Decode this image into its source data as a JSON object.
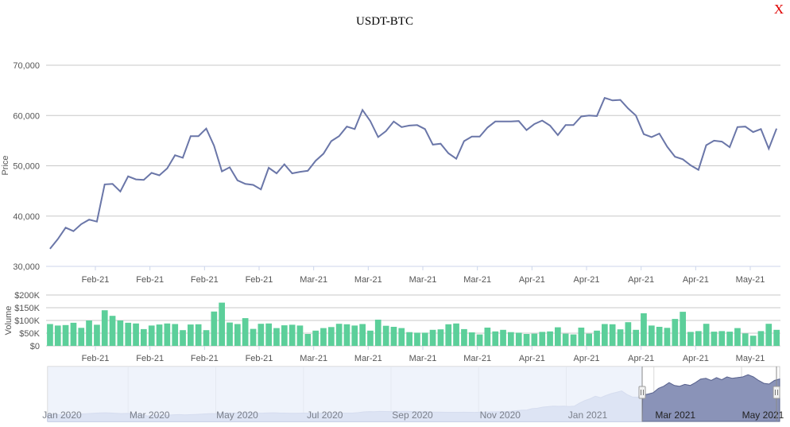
{
  "window": {
    "title": "USDT-BTC",
    "close_label": "X"
  },
  "colors": {
    "price_line": "#6a76a8",
    "volume_bar": "#5ccf9a",
    "navigator_fill": "#b8c3e2",
    "navigator_selected": "#8a93b8",
    "navigator_mask": "#e9eff9"
  },
  "chart_data": [
    {
      "type": "line",
      "title": "USDT-BTC",
      "ylabel": "Price",
      "ylim": [
        30000,
        70000
      ],
      "yticks": [
        30000,
        40000,
        50000,
        60000,
        70000
      ],
      "ytick_labels": [
        "30,000",
        "40,000",
        "50,000",
        "60,000",
        "70,000"
      ],
      "xtick_labels": [
        "Feb-21",
        "Feb-21",
        "Feb-21",
        "Feb-21",
        "Mar-21",
        "Mar-21",
        "Mar-21",
        "Mar-21",
        "Apr-21",
        "Apr-21",
        "Apr-21",
        "Apr-21",
        "May-21"
      ],
      "grid": true,
      "series": [
        {
          "values": [
            33500,
            35400,
            37700,
            37000,
            38400,
            39300,
            38900,
            46300,
            46400,
            44900,
            47900,
            47300,
            47200,
            48600,
            48100,
            49500,
            52100,
            51600,
            55900,
            55900,
            57400,
            54000,
            48900,
            49700,
            47100,
            46400,
            46200,
            45300,
            49600,
            48500,
            50300,
            48500,
            48800,
            49000,
            51000,
            52400,
            54900,
            55900,
            57800,
            57300,
            61100,
            58900,
            55700,
            56900,
            58800,
            57700,
            58000,
            58100,
            57300,
            54200,
            54400,
            52500,
            51400,
            54900,
            55800,
            55800,
            57600,
            58800,
            58800,
            58800,
            58900,
            57100,
            58300,
            59000,
            58000,
            56100,
            58100,
            58100,
            59800,
            60000,
            59900,
            63500,
            63000,
            63100,
            61400,
            60000,
            56300,
            55700,
            56400,
            53800,
            51800,
            51300,
            50100,
            49200,
            54100,
            55000,
            54800,
            53700,
            57700,
            57800,
            56700,
            57300,
            53400,
            57400
          ]
        }
      ]
    },
    {
      "type": "bar",
      "ylabel": "Volume",
      "ylim": [
        0,
        200000
      ],
      "yticks": [
        0,
        50000,
        100000,
        150000,
        200000
      ],
      "ytick_labels": [
        "$0",
        "$50K",
        "$100K",
        "$150K",
        "$200K"
      ],
      "xtick_labels": [
        "Feb-21",
        "Feb-21",
        "Feb-21",
        "Feb-21",
        "Mar-21",
        "Mar-21",
        "Mar-21",
        "Mar-21",
        "Apr-21",
        "Apr-21",
        "Apr-21",
        "Apr-21",
        "May-21"
      ],
      "grid": true,
      "series": [
        {
          "values": [
            86000,
            80000,
            82000,
            91000,
            71000,
            100000,
            83000,
            140000,
            118000,
            100000,
            91000,
            88000,
            66000,
            80000,
            84000,
            88000,
            86000,
            62000,
            84000,
            85000,
            62000,
            135000,
            170000,
            92000,
            86000,
            109000,
            67000,
            87000,
            88000,
            70000,
            81000,
            83000,
            80000,
            47000,
            60000,
            70000,
            74000,
            87000,
            85000,
            80000,
            86000,
            60000,
            103000,
            79000,
            75000,
            70000,
            54000,
            52000,
            52000,
            63000,
            65000,
            85000,
            88000,
            66000,
            53000,
            45000,
            72000,
            57000,
            63000,
            54000,
            52000,
            47000,
            48000,
            55000,
            57000,
            73000,
            48000,
            45000,
            72000,
            48000,
            60000,
            86000,
            85000,
            65000,
            93000,
            63000,
            128000,
            80000,
            75000,
            71000,
            106000,
            134000,
            55000,
            58000,
            87000,
            56000,
            58000,
            56000,
            70000,
            49000,
            40000,
            58000,
            87000,
            63000
          ]
        }
      ]
    },
    {
      "type": "area",
      "role": "navigator",
      "xtick_labels": [
        "Jan 2020",
        "Mar 2020",
        "May 2020",
        "Jul 2020",
        "Sep 2020",
        "Nov 2020",
        "Jan 2021",
        "Mar 2021",
        "May 2021"
      ],
      "selected_range": [
        "Jan-21",
        "May-21"
      ],
      "series": [
        {
          "values": [
            7400,
            7600,
            7200,
            7100,
            7300,
            7800,
            8100,
            8500,
            8900,
            9300,
            9700,
            9900,
            9600,
            9200,
            8800,
            9000,
            8600,
            7900,
            7200,
            5200,
            6100,
            6800,
            6600,
            6700,
            7100,
            7300,
            6900,
            7200,
            7600,
            7900,
            8300,
            8800,
            8700,
            9200,
            9600,
            9500,
            9400,
            9700,
            9800,
            9600,
            9300,
            9500,
            9800,
            9900,
            9600,
            9400,
            9200,
            9100,
            9300,
            9400,
            9200,
            9150,
            9100,
            9000,
            9200,
            9300,
            9400,
            9500,
            9600,
            10100,
            11100,
            11500,
            11400,
            11800,
            11700,
            11600,
            11500,
            11800,
            12000,
            11700,
            11300,
            11400,
            11500,
            10900,
            10800,
            10700,
            10600,
            10500,
            10600,
            10700,
            10500,
            10400,
            10700,
            10900,
            11100,
            11200,
            11400,
            11600,
            11900,
            12800,
            13400,
            13800,
            15700,
            16200,
            17800,
            18400,
            19200,
            18900,
            19100,
            18700,
            19100,
            23400,
            27000,
            29400,
            33000,
            31000,
            34000,
            36700,
            38500,
            40300,
            35500,
            32000,
            31500,
            34500,
            36000,
            38000,
            44000,
            47000,
            52000,
            48000,
            46800,
            49600,
            48000,
            52000,
            57000,
            58000,
            55000,
            59000,
            56000,
            60000,
            58000,
            59000,
            60000,
            63000,
            60000,
            55000,
            51000,
            50000,
            55000,
            57000
          ]
        }
      ]
    }
  ]
}
